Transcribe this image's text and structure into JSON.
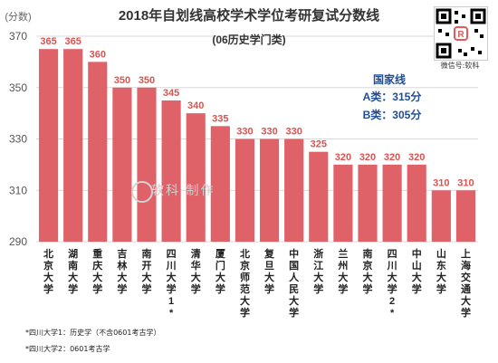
{
  "chart_data": {
    "type": "bar",
    "title": "2018年自划线高校学术学位考研复试分数线",
    "subtitle": "(06历史学门类)",
    "ylabel": "(分数)",
    "ylim": [
      290,
      370
    ],
    "yticks": [
      290,
      310,
      330,
      350,
      370
    ],
    "categories": [
      "北京大学",
      "湖南大学",
      "重庆大学",
      "吉林大学",
      "南开大学",
      "四川大学1*",
      "清华大学",
      "厦门大学",
      "北京师范大学",
      "复旦大学",
      "中国人民大学",
      "浙江大学",
      "兰州大学",
      "南京大学",
      "四川大学2*",
      "中山大学",
      "山东大学",
      "上海交通大学"
    ],
    "values": [
      365,
      365,
      360,
      350,
      350,
      345,
      340,
      335,
      330,
      330,
      330,
      325,
      320,
      320,
      320,
      320,
      310,
      310
    ],
    "bar_color": "#e06269",
    "label_color": "#d9534f",
    "grid": true,
    "annotation": {
      "title": "国家线",
      "lines": [
        "A类：315分",
        "B类：305分"
      ],
      "title_color": "#1f4e96"
    }
  },
  "footnotes": [
    "*四川大学1：历史学（不含0601考古学）",
    "*四川大学2：0601考古学"
  ],
  "qr_caption": "微信号:软科",
  "watermark": "软科 制作"
}
